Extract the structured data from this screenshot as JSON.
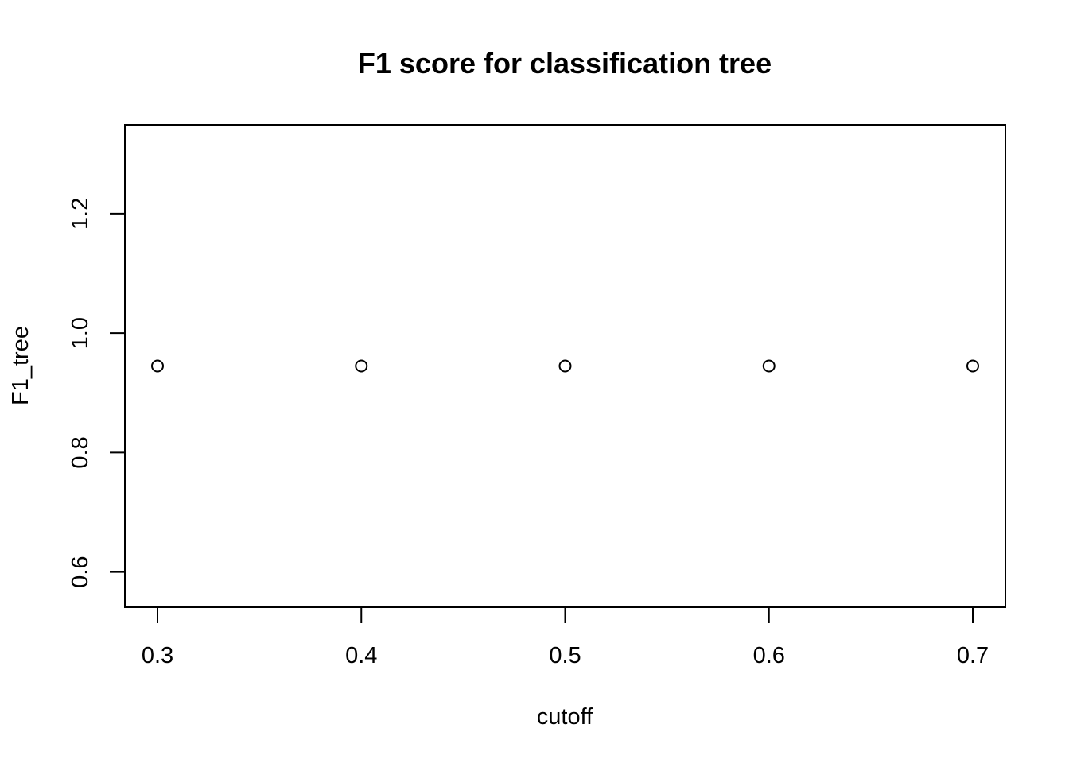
{
  "chart_data": {
    "type": "scatter",
    "title": "F1 score for classification tree",
    "xlabel": "cutoff",
    "ylabel": "F1_tree",
    "x": [
      0.3,
      0.4,
      0.5,
      0.6,
      0.7
    ],
    "y": [
      0.945,
      0.945,
      0.945,
      0.945,
      0.945
    ],
    "xlim": [
      0.284,
      0.716
    ],
    "ylim": [
      0.541,
      1.349
    ],
    "xticks": [
      0.3,
      0.4,
      0.5,
      0.6,
      0.7
    ],
    "xtick_labels": [
      "0.3",
      "0.4",
      "0.5",
      "0.6",
      "0.7"
    ],
    "yticks": [
      0.6,
      0.8,
      1.0,
      1.2
    ],
    "ytick_labels": [
      "0.6",
      "0.8",
      "1.0",
      "1.2"
    ],
    "grid": false,
    "legend": "none",
    "marker": "open-circle",
    "colors": {
      "foreground": "#000000",
      "background": "#ffffff"
    }
  }
}
